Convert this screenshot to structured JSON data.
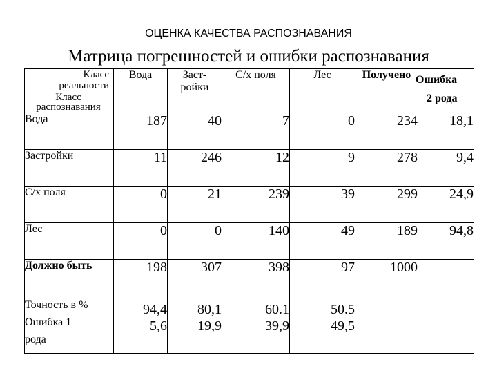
{
  "heading": "ОЦЕНКА КАЧЕСТВА РАСПОЗНАВАНИЯ",
  "title": "Матрица погрешностей и ошибки распознавания",
  "corner": {
    "top": "Класс реальности",
    "bottom": "Класс распознавания"
  },
  "columns": {
    "water": "Вода",
    "built_line1": "Заст-",
    "built_line2": "ройки",
    "agri": "С/х поля",
    "forest": "Лес",
    "received": "Получено",
    "error2_line1": "Ошибка",
    "error2_line2": "2 рода"
  },
  "rows": [
    {
      "label": "Вода",
      "values": [
        "187",
        "40",
        "7",
        "0",
        "234",
        "18,1"
      ]
    },
    {
      "label": "Застройки",
      "values": [
        "11",
        "246",
        "12",
        "9",
        "278",
        "9,4"
      ]
    },
    {
      "label": "С/х поля",
      "values": [
        "0",
        "21",
        "239",
        "39",
        "299",
        "24,9"
      ]
    },
    {
      "label": "Лес",
      "values": [
        "0",
        "0",
        "140",
        "49",
        "189",
        "94,8"
      ]
    }
  ],
  "should_be": {
    "label": "Должно быть",
    "values": [
      "198",
      "307",
      "398",
      "97"
    ],
    "total": "1000"
  },
  "accuracy": {
    "label1": "Точность в %",
    "label2": "Ошибка 1",
    "label3": "рода",
    "values": [
      {
        "acc": "94,4",
        "err": "5,6"
      },
      {
        "acc": "80,1",
        "err": "19,9"
      },
      {
        "acc": "60.1",
        "err": "39,9"
      },
      {
        "acc": "50.5",
        "err": "49,5"
      }
    ]
  }
}
